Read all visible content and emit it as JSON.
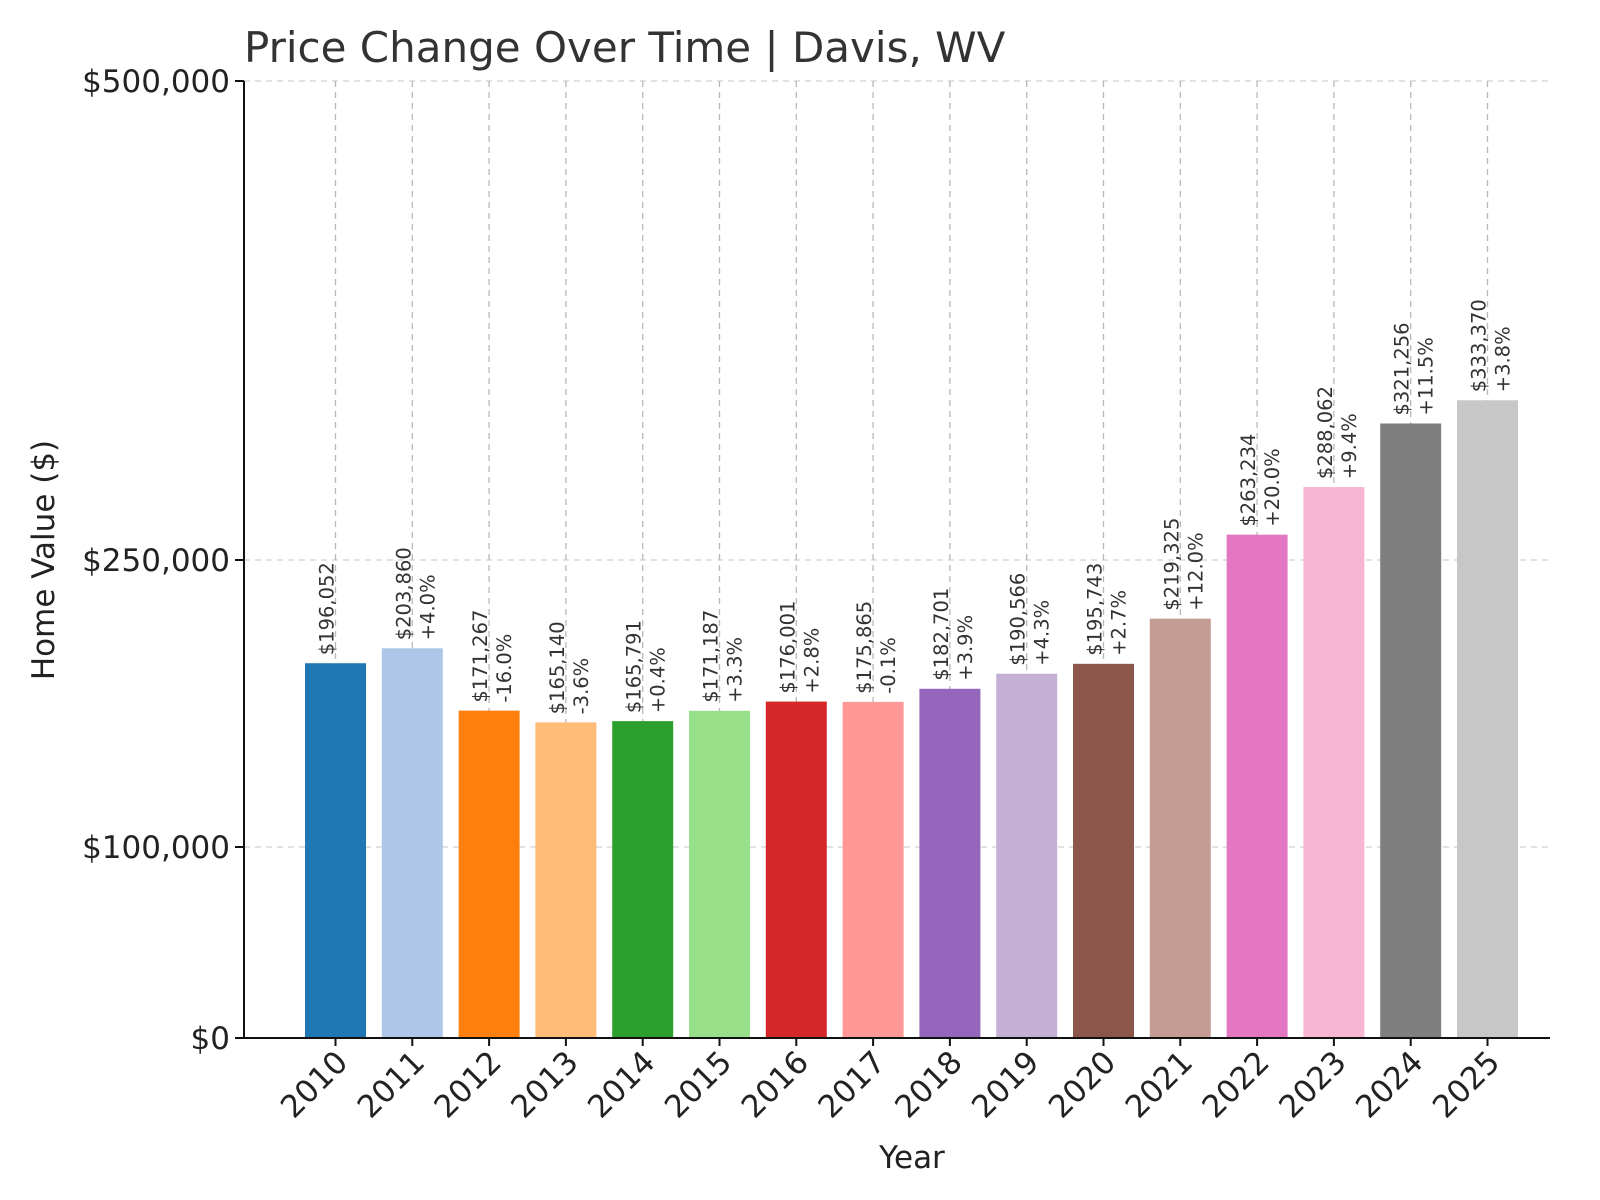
{
  "chart_data": {
    "type": "bar",
    "title": "Price Change Over Time | Davis, WV",
    "xlabel": "Year",
    "ylabel": "Home Value ($)",
    "ylim": [
      0,
      500000
    ],
    "yticks": [
      0,
      100000,
      250000,
      500000
    ],
    "ytick_labels": [
      "$0",
      "$100,000",
      "$250,000",
      "$500,000"
    ],
    "grid": true,
    "categories": [
      "2010",
      "2011",
      "2012",
      "2013",
      "2014",
      "2015",
      "2016",
      "2017",
      "2018",
      "2019",
      "2020",
      "2021",
      "2022",
      "2023",
      "2024",
      "2025"
    ],
    "values": [
      196052,
      203860,
      171267,
      165140,
      165791,
      171187,
      176001,
      175865,
      182701,
      190566,
      195743,
      219325,
      263234,
      288062,
      321256,
      333370
    ],
    "value_labels": [
      "$196,052",
      "$203,860",
      "$171,267",
      "$165,140",
      "$165,791",
      "$171,187",
      "$176,001",
      "$175,865",
      "$182,701",
      "$190,566",
      "$195,743",
      "$219,325",
      "$263,234",
      "$288,062",
      "$321,256",
      "$333,370"
    ],
    "change_labels": [
      "",
      "+4.0%",
      "-16.0%",
      "-3.6%",
      "+0.4%",
      "+3.3%",
      "+2.8%",
      "-0.1%",
      "+3.9%",
      "+4.3%",
      "+2.7%",
      "+12.0%",
      "+20.0%",
      "+9.4%",
      "+11.5%",
      "+3.8%"
    ],
    "colors": [
      "#1f77b4",
      "#aec7e8",
      "#ff7f0e",
      "#ffbb78",
      "#2ca02c",
      "#98df8a",
      "#d62728",
      "#ff9896",
      "#9467bd",
      "#c5b0d5",
      "#8c564b",
      "#c49c94",
      "#e377c2",
      "#f7b6d2",
      "#7f7f7f",
      "#c7c7c7"
    ]
  }
}
